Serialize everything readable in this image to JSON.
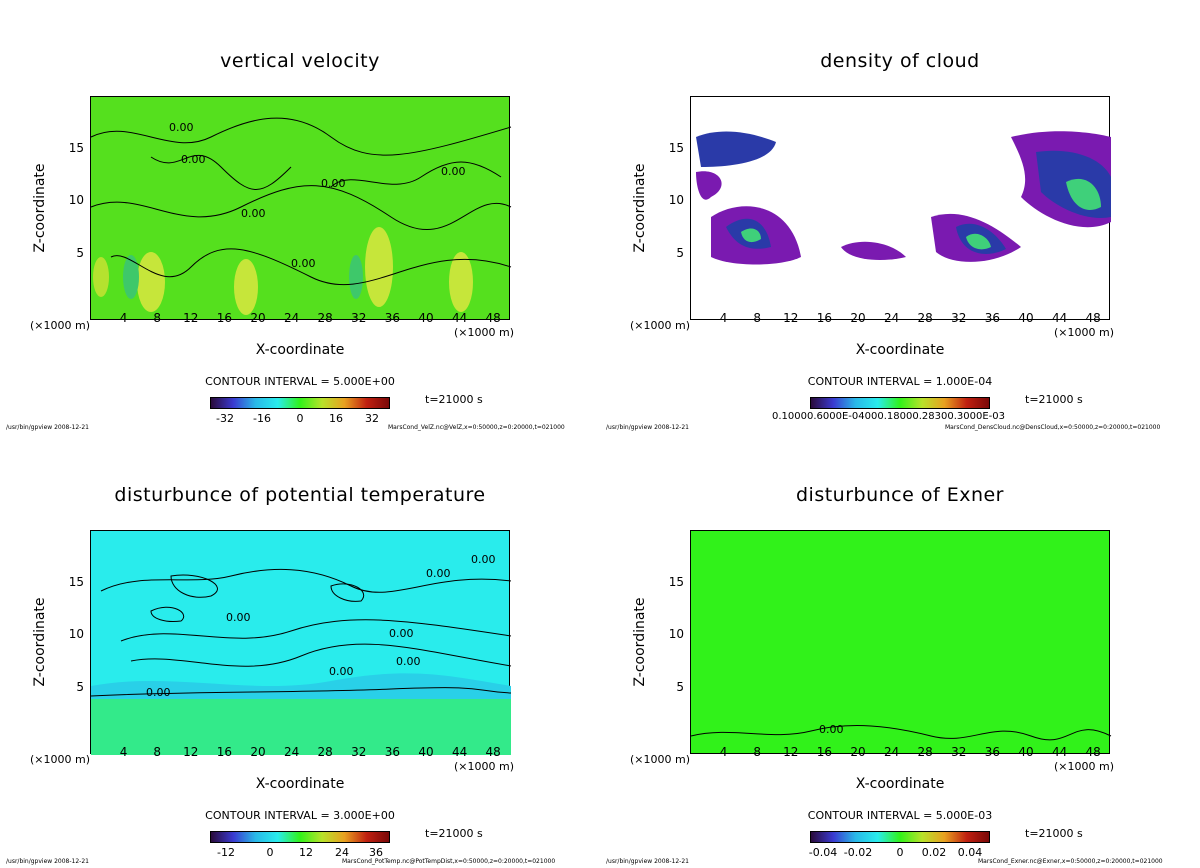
{
  "global": {
    "footer_left": "/usr/bin/gpview  2008-12-21",
    "time_label": "t=21000 s",
    "x_unit": "(×1000 m)",
    "xlabel": "X-coordinate",
    "ylabel": "Z-coordinate"
  },
  "colors": {
    "velocity_fill": "#55e01e",
    "cloud_bg": "#ffffff",
    "potemp_fill": "#29ecec",
    "exner_fill": "#31f21a",
    "contour": "#000000"
  },
  "chart_data": [
    {
      "id": "velocity",
      "type": "heatmap",
      "title": "vertical velocity",
      "xlabel": "X-coordinate",
      "ylabel": "Z-coordinate",
      "xlim": [
        0,
        50
      ],
      "ylim": [
        0,
        20
      ],
      "xticks": [
        4,
        8,
        12,
        16,
        20,
        24,
        28,
        32,
        36,
        40,
        44,
        48
      ],
      "yticks": [
        5,
        10,
        15
      ],
      "contour_interval": "CONTOUR INTERVAL = 5.000E+00",
      "contour_labels": [
        "0.00",
        "0.00",
        "0.00",
        "0.00",
        "0.00",
        "0.00"
      ],
      "colorbar_ticks": [
        "-32",
        "-16",
        "0",
        "16",
        "32"
      ],
      "footer_right": "MarsCond_VelZ.nc@VelZ,x=0:50000,z=0:20000,t=021000"
    },
    {
      "id": "cloud",
      "type": "heatmap",
      "title": "density of cloud",
      "xlabel": "X-coordinate",
      "ylabel": "Z-coordinate",
      "xlim": [
        0,
        50
      ],
      "ylim": [
        0,
        20
      ],
      "xticks": [
        4,
        8,
        12,
        16,
        20,
        24,
        28,
        32,
        36,
        40,
        44,
        48
      ],
      "yticks": [
        5,
        10,
        15
      ],
      "contour_interval": "CONTOUR INTERVAL = 1.000E-04",
      "colorbar_ticks_overlapping": "0.10000.6000E-04000.18000.28300.3000E-03",
      "footer_right": "MarsCond_DensCloud.nc@DensCloud,x=0:50000,z=0:20000,t=021000"
    },
    {
      "id": "potemp",
      "type": "heatmap",
      "title": "disturbunce of potential temperature",
      "xlabel": "X-coordinate",
      "ylabel": "Z-coordinate",
      "xlim": [
        0,
        50
      ],
      "ylim": [
        0,
        20
      ],
      "xticks": [
        4,
        8,
        12,
        16,
        20,
        24,
        28,
        32,
        36,
        40,
        44,
        48
      ],
      "yticks": [
        5,
        10,
        15
      ],
      "contour_interval": "CONTOUR INTERVAL = 3.000E+00",
      "contour_labels": [
        "0.00",
        "0.00",
        "0.00",
        "0.00",
        "0.00",
        "0.00",
        "0.00"
      ],
      "colorbar_ticks": [
        "-12",
        "0",
        "12",
        "24",
        "36"
      ],
      "footer_right": "MarsCond_PotTemp.nc@PotTempDist,x=0:50000,z=0:20000,t=021000"
    },
    {
      "id": "exner",
      "type": "heatmap",
      "title": "disturbunce of Exner",
      "xlabel": "X-coordinate",
      "ylabel": "Z-coordinate",
      "xlim": [
        0,
        50
      ],
      "ylim": [
        0,
        20
      ],
      "xticks": [
        4,
        8,
        12,
        16,
        20,
        24,
        28,
        32,
        36,
        40,
        44,
        48
      ],
      "yticks": [
        5,
        10,
        15
      ],
      "contour_interval": "CONTOUR INTERVAL = 5.000E-03",
      "contour_labels": [
        "0.00"
      ],
      "colorbar_ticks": [
        "-0.04",
        "-0.02",
        "0",
        "0.02",
        "0.04"
      ],
      "footer_right": "MarsCond_Exner.nc@Exner,x=0:50000,z=0:20000,t=021000"
    }
  ]
}
